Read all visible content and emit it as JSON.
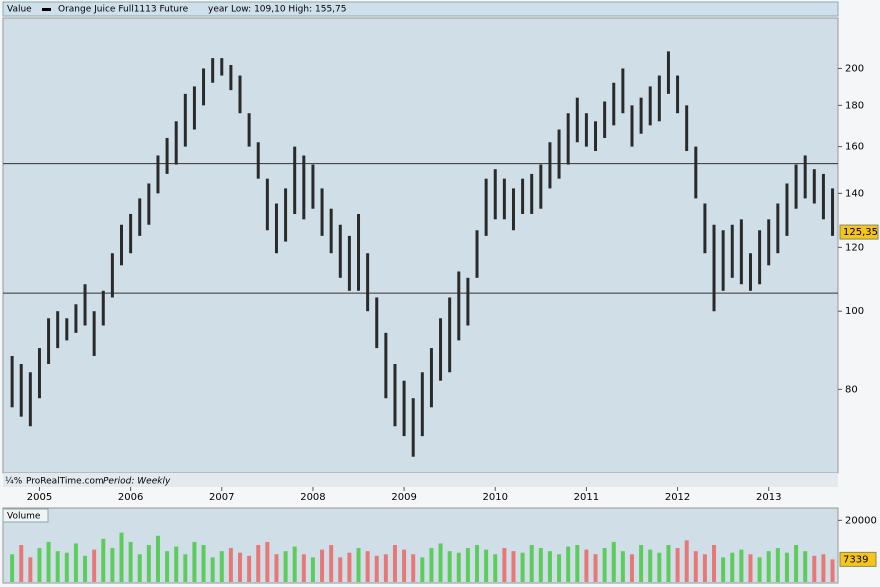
{
  "chart_data": [
    {
      "type": "range-bar",
      "label": "Value",
      "subtitle": "year Low: 109,10 High: 155,75",
      "brand": "ProRealTime.com",
      "brand_logo": "¼%",
      "period": "Period: Weekly",
      "log_scale": true,
      "x": [
        2004.7,
        2004.8,
        2004.9,
        2005.0,
        2005.1,
        2005.2,
        2005.3,
        2005.4,
        2005.5,
        2005.6,
        2005.7,
        2005.8,
        2005.9,
        2006.0,
        2006.1,
        2006.2,
        2006.3,
        2006.4,
        2006.5,
        2006.6,
        2006.7,
        2006.8,
        2006.9,
        2007.0,
        2007.1,
        2007.2,
        2007.3,
        2007.4,
        2007.5,
        2007.6,
        2007.7,
        2007.8,
        2007.9,
        2008.0,
        2008.1,
        2008.2,
        2008.3,
        2008.4,
        2008.5,
        2008.6,
        2008.7,
        2008.8,
        2008.9,
        2009.0,
        2009.1,
        2009.2,
        2009.3,
        2009.4,
        2009.5,
        2009.6,
        2009.7,
        2009.8,
        2009.9,
        2010.0,
        2010.1,
        2010.2,
        2010.3,
        2010.4,
        2010.5,
        2010.6,
        2010.7,
        2010.8,
        2010.9,
        2011.0,
        2011.1,
        2011.2,
        2011.3,
        2011.4,
        2011.5,
        2011.6,
        2011.7,
        2011.8,
        2011.9,
        2012.0,
        2012.1,
        2012.2,
        2012.3,
        2012.4,
        2012.5,
        2012.6,
        2012.7,
        2012.8,
        2012.9,
        2013.0,
        2013.1,
        2013.2,
        2013.3,
        2013.4,
        2013.5,
        2013.6,
        2013.7
      ],
      "series": [
        {
          "name": "Orange Juice Full1113 Future",
          "color": "#2a2a2a",
          "low": [
            76,
            74,
            72,
            78,
            86,
            90,
            92,
            94,
            96,
            88,
            96,
            104,
            114,
            118,
            124,
            128,
            140,
            148,
            152,
            160,
            168,
            180,
            192,
            196,
            188,
            176,
            160,
            146,
            126,
            118,
            122,
            132,
            130,
            134,
            124,
            118,
            110,
            106,
            106,
            100,
            90,
            78,
            72,
            70,
            66,
            70,
            76,
            82,
            84,
            92,
            96,
            110,
            124,
            130,
            130,
            126,
            132,
            132,
            134,
            142,
            146,
            152,
            162,
            160,
            158,
            164,
            170,
            176,
            160,
            166,
            170,
            172,
            186,
            176,
            158,
            138,
            118,
            100,
            106,
            110,
            108,
            106,
            108,
            114,
            118,
            124,
            134,
            138,
            136,
            130,
            124
          ],
          "high": [
            88,
            86,
            84,
            90,
            98,
            100,
            98,
            102,
            108,
            100,
            106,
            118,
            128,
            132,
            138,
            144,
            156,
            164,
            172,
            186,
            190,
            200,
            206,
            206,
            202,
            196,
            176,
            162,
            146,
            136,
            142,
            160,
            156,
            152,
            142,
            134,
            128,
            124,
            132,
            118,
            104,
            94,
            86,
            82,
            78,
            84,
            90,
            98,
            104,
            112,
            110,
            126,
            146,
            150,
            146,
            142,
            146,
            148,
            152,
            162,
            168,
            176,
            184,
            176,
            172,
            182,
            192,
            200,
            180,
            184,
            190,
            196,
            210,
            196,
            180,
            160,
            136,
            128,
            126,
            128,
            130,
            118,
            126,
            130,
            136,
            144,
            152,
            156,
            150,
            148,
            142
          ]
        }
      ],
      "xlim": [
        2004.6,
        2013.76
      ],
      "xticks": [
        2005,
        2006,
        2007,
        2008,
        2009,
        2010,
        2011,
        2012,
        2013
      ],
      "ylim": [
        63,
        231
      ],
      "yticks": [
        80,
        100,
        120,
        140,
        160,
        180,
        200
      ],
      "hlines": [
        152.4,
        105.3
      ],
      "last_price": {
        "value": 125.35,
        "label": "125,35"
      },
      "tag_color": "#f5c518"
    },
    {
      "type": "bar",
      "label": "Volume",
      "values": [
        9000,
        12000,
        8000,
        11000,
        13000,
        10000,
        9500,
        12500,
        8500,
        10500,
        14000,
        11000,
        16000,
        13000,
        9000,
        12000,
        15000,
        10000,
        11500,
        9000,
        13000,
        12000,
        8000,
        10000,
        11000,
        9500,
        8500,
        12000,
        13000,
        9000,
        10000,
        11500,
        9000,
        8000,
        10500,
        12000,
        8000,
        9500,
        11000,
        10000,
        8500,
        9000,
        12000,
        10500,
        9000,
        8000,
        11000,
        12500,
        10000,
        9500,
        11000,
        12000,
        10500,
        9000,
        11000,
        10000,
        9500,
        12000,
        11000,
        10000,
        9000,
        11500,
        12000,
        10500,
        9000,
        11000,
        13000,
        10000,
        9000,
        12000,
        10500,
        9500,
        12000,
        11000,
        13500,
        10000,
        9000,
        12000,
        8000,
        9500,
        10500,
        9000,
        8000,
        10000,
        11000,
        9500,
        12000,
        10000,
        8500,
        9000,
        7339
      ],
      "up_color": "#5ccc5c",
      "down_color": "#e67878",
      "ylim": [
        0,
        24000
      ],
      "yticks": [
        20000
      ],
      "last_volume": 7339,
      "tag_color": "#f5c518"
    }
  ]
}
